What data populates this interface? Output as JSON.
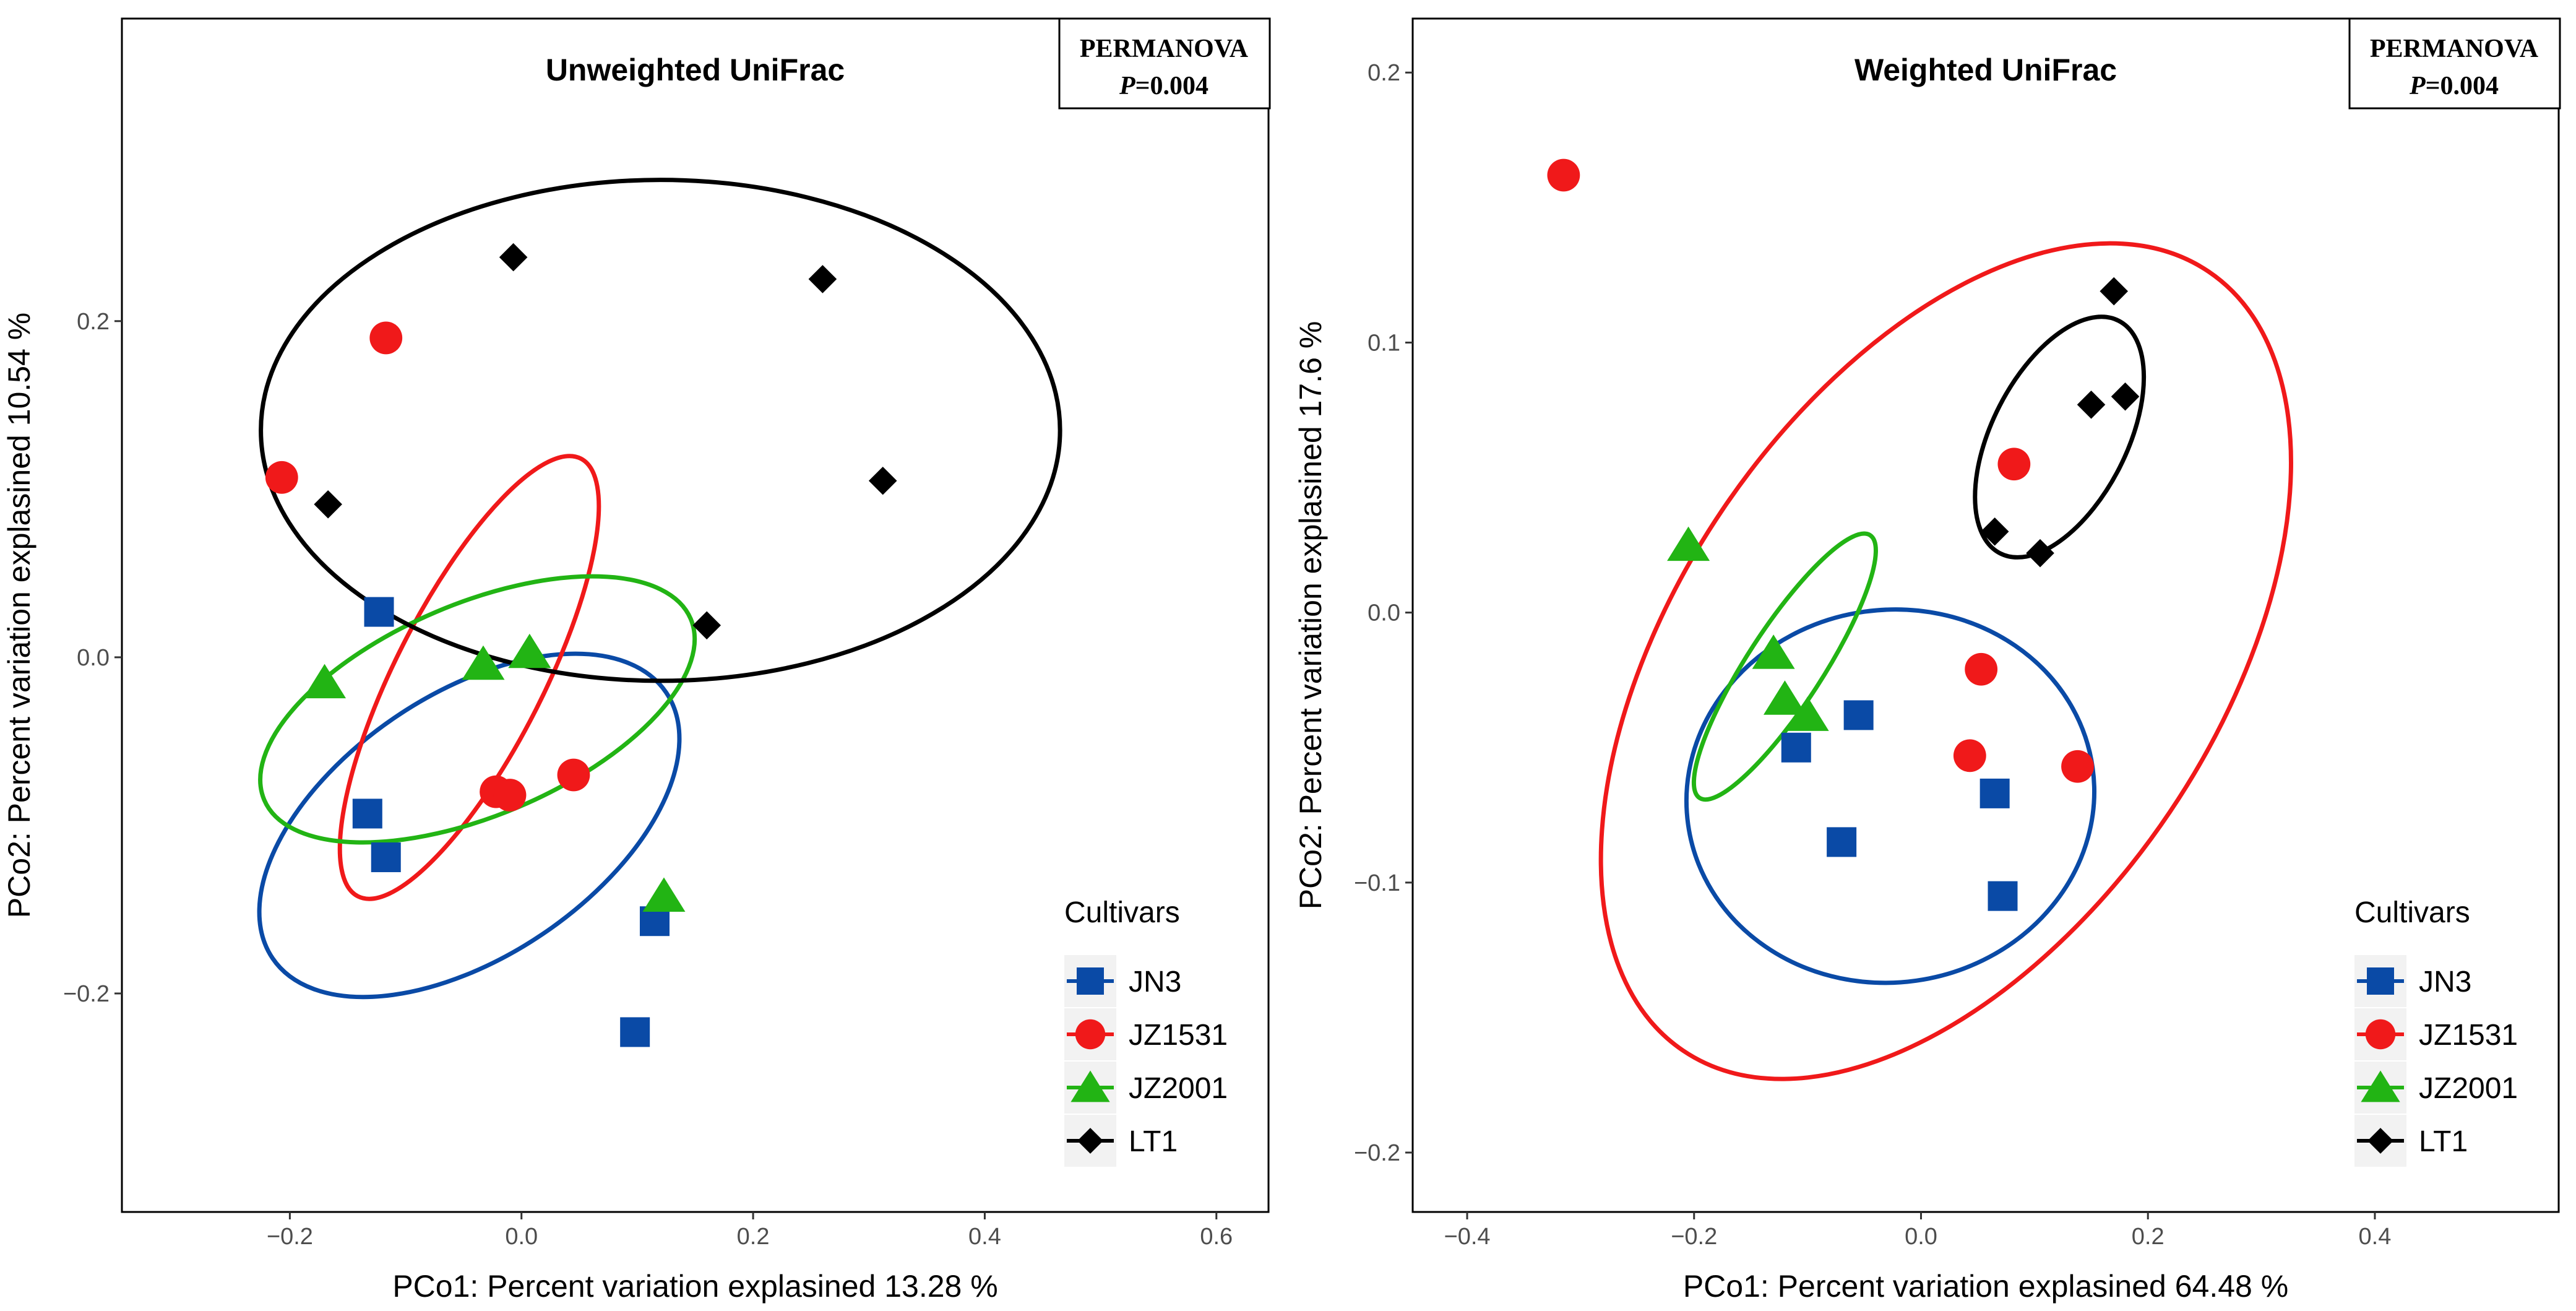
{
  "colors": {
    "JN3": "#0a4aa6",
    "JZ1531": "#f0191a",
    "JZ2001": "#22b414",
    "LT1": "#000000"
  },
  "chart_data": [
    {
      "type": "scatter",
      "title": "Unweighted UniFrac",
      "xlabel": "PCo1: Percent variation explasined  13.28 %",
      "ylabel": "PCo2: Percent variation explasined  10.54 %",
      "xlim": [
        -0.345,
        0.645
      ],
      "ylim": [
        -0.33,
        0.38
      ],
      "xticks": [
        -0.2,
        0.0,
        0.2,
        0.4,
        0.6
      ],
      "xtick_labels": [
        "−0.2",
        "0.0",
        "0.2",
        "0.4",
        "0.6"
      ],
      "yticks": [
        -0.2,
        0.0,
        0.2
      ],
      "ytick_labels": [
        "−0.2",
        "0.0",
        "0.2"
      ],
      "grid": false,
      "legend_position": "bottom-right",
      "legend_title": "Cultivars",
      "annotation": {
        "line1": "PERMANOVA",
        "p_label": "P",
        "p_value": "=0.004"
      },
      "series": [
        {
          "name": "JN3",
          "marker": "square",
          "x": [
            -0.123,
            -0.133,
            -0.117,
            0.115,
            0.098
          ],
          "y": [
            0.027,
            -0.093,
            -0.119,
            -0.157,
            -0.223
          ]
        },
        {
          "name": "JZ1531",
          "marker": "circle",
          "x": [
            -0.117,
            -0.207,
            -0.022,
            -0.01,
            0.045
          ],
          "y": [
            0.19,
            0.107,
            -0.08,
            -0.082,
            -0.07
          ]
        },
        {
          "name": "JZ2001",
          "marker": "triangle",
          "x": [
            -0.17,
            -0.033,
            0.007,
            0.123
          ],
          "y": [
            -0.015,
            -0.004,
            0.003,
            -0.142
          ]
        },
        {
          "name": "LT1",
          "marker": "diamond",
          "x": [
            -0.167,
            -0.007,
            0.26,
            0.312,
            0.16
          ],
          "y": [
            0.091,
            0.238,
            0.225,
            0.105,
            0.019
          ]
        }
      ],
      "ellipses": [
        {
          "series": "JN3",
          "cx": -0.045,
          "cy": -0.1,
          "rx": 0.205,
          "ry": 0.078,
          "angle_deg": 34
        },
        {
          "series": "JZ1531",
          "cx": -0.045,
          "cy": -0.012,
          "rx": 0.212,
          "ry": 0.044,
          "angle_deg": 63
        },
        {
          "series": "JZ2001",
          "cx": -0.038,
          "cy": -0.031,
          "rx": 0.2,
          "ry": 0.063,
          "angle_deg": 23
        },
        {
          "series": "LT1",
          "cx": 0.12,
          "cy": 0.135,
          "rx": 0.345,
          "ry": 0.149,
          "angle_deg": 0
        }
      ]
    },
    {
      "type": "scatter",
      "title": "Weighted UniFrac",
      "xlabel": "PCo1: Percent variation explasined  64.48 %",
      "ylabel": "PCo2: Percent variation explasined  17.6 %",
      "xlim": [
        -0.448,
        0.562
      ],
      "ylim": [
        -0.222,
        0.22
      ],
      "xticks": [
        -0.4,
        -0.2,
        0.0,
        0.2,
        0.4
      ],
      "xtick_labels": [
        "−0.4",
        "−0.2",
        "0.0",
        "0.2",
        "0.4"
      ],
      "yticks": [
        -0.2,
        -0.1,
        0.0,
        0.1,
        0.2
      ],
      "ytick_labels": [
        "−0.2",
        "−0.1",
        "0.0",
        "0.1",
        "0.2"
      ],
      "grid": false,
      "legend_position": "bottom-right",
      "legend_title": "Cultivars",
      "annotation": {
        "line1": "PERMANOVA",
        "p_label": "P",
        "p_value": "=0.004"
      },
      "series": [
        {
          "name": "JN3",
          "marker": "square",
          "x": [
            -0.11,
            -0.055,
            -0.07,
            0.065,
            0.072
          ],
          "y": [
            -0.05,
            -0.038,
            -0.085,
            -0.067,
            -0.105
          ]
        },
        {
          "name": "JZ1531",
          "marker": "circle",
          "x": [
            -0.315,
            0.082,
            0.053,
            0.043,
            0.138
          ],
          "y": [
            0.162,
            0.055,
            -0.021,
            -0.053,
            -0.057
          ]
        },
        {
          "name": "JZ2001",
          "marker": "triangle",
          "x": [
            -0.205,
            -0.13,
            -0.12,
            -0.1
          ],
          "y": [
            0.025,
            -0.015,
            -0.032,
            -0.038
          ]
        },
        {
          "name": "LT1",
          "marker": "diamond",
          "x": [
            0.17,
            0.15,
            0.18,
            0.065,
            0.105
          ],
          "y": [
            0.119,
            0.077,
            0.08,
            0.03,
            0.022
          ]
        }
      ],
      "ellipses": [
        {
          "series": "JN3",
          "cx": -0.027,
          "cy": -0.068,
          "rx": 0.18,
          "ry": 0.069,
          "angle_deg": 8
        },
        {
          "series": "JZ1531",
          "cx": 0.022,
          "cy": -0.018,
          "rx": 0.414,
          "ry": 0.1,
          "angle_deg": 56
        },
        {
          "series": "JZ2001",
          "cx": -0.12,
          "cy": -0.02,
          "rx": 0.138,
          "ry": 0.014,
          "angle_deg": 57
        },
        {
          "series": "LT1",
          "cx": 0.122,
          "cy": 0.065,
          "rx": 0.115,
          "ry": 0.025,
          "angle_deg": 63
        }
      ]
    }
  ]
}
